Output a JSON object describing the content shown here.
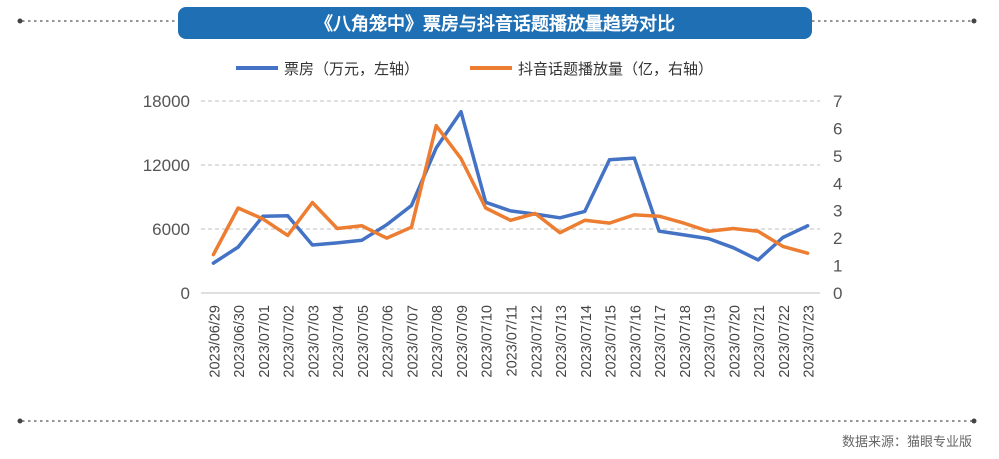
{
  "chart_data": {
    "type": "line",
    "title": "《八角笼中》票房与抖音话题播放量趋势对比",
    "categories": [
      "2023/06/29",
      "2023/06/30",
      "2023/07/01",
      "2023/07/02",
      "2023/07/03",
      "2023/07/04",
      "2023/07/05",
      "2023/07/06",
      "2023/07/07",
      "2023/07/08",
      "2023/07/09",
      "2023/07/10",
      "2023/07/11",
      "2023/07/12",
      "2023/07/13",
      "2023/07/14",
      "2023/07/15",
      "2023/07/16",
      "2023/07/17",
      "2023/07/18",
      "2023/07/19",
      "2023/07/20",
      "2023/07/21",
      "2023/07/22",
      "2023/07/23"
    ],
    "series": [
      {
        "name": "票房（万元，左轴）",
        "axis": "left",
        "color": "#4472C4",
        "values": [
          2800,
          4300,
          7200,
          7250,
          4500,
          4700,
          4950,
          6400,
          8200,
          13600,
          17000,
          8500,
          7700,
          7400,
          7050,
          7650,
          12500,
          12650,
          5800,
          5450,
          5100,
          4250,
          3100,
          5200,
          6300
        ]
      },
      {
        "name": "抖音话题播放量（亿，右轴）",
        "axis": "right",
        "color": "#ED7D31",
        "values": [
          1.4,
          3.1,
          2.7,
          2.1,
          3.3,
          2.35,
          2.45,
          2.0,
          2.4,
          6.1,
          4.9,
          3.1,
          2.65,
          2.9,
          2.2,
          2.65,
          2.55,
          2.85,
          2.8,
          2.55,
          2.25,
          2.35,
          2.25,
          1.7,
          1.45
        ]
      }
    ],
    "y_left": {
      "min": 0,
      "max": 18000,
      "ticks": [
        "0",
        "6000",
        "12000",
        "18000"
      ]
    },
    "y_right": {
      "min": 0,
      "max": 7,
      "ticks": [
        "0",
        "1",
        "2",
        "3",
        "4",
        "5",
        "6",
        "7"
      ]
    },
    "grid": true,
    "legend": "top"
  },
  "source": "数据来源：猫眼专业版",
  "colors": {
    "title_bg": "#1F6FB5",
    "title_text": "#ffffff",
    "grid": "#BFBFBF",
    "dots": "#555555"
  }
}
